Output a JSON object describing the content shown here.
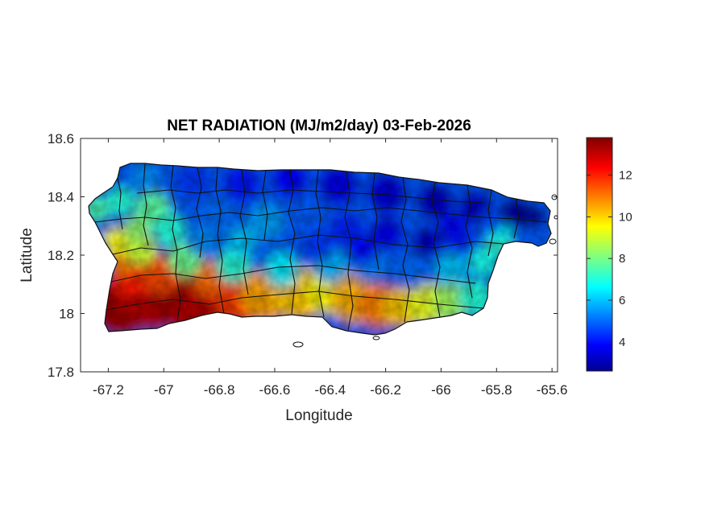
{
  "title": "NET RADIATION (MJ/m2/day) 03-Feb-2026",
  "x_axis": {
    "label": "Longitude",
    "range": [
      -67.3,
      -65.58
    ],
    "ticks": [
      {
        "value": -67.2,
        "label": "-67.2"
      },
      {
        "value": -67.0,
        "label": "-67"
      },
      {
        "value": -66.8,
        "label": "-66.8"
      },
      {
        "value": -66.6,
        "label": "-66.6"
      },
      {
        "value": -66.4,
        "label": "-66.4"
      },
      {
        "value": -66.2,
        "label": "-66.2"
      },
      {
        "value": -66.0,
        "label": "-66"
      },
      {
        "value": -65.8,
        "label": "-65.8"
      },
      {
        "value": -65.6,
        "label": "-65.6"
      }
    ]
  },
  "y_axis": {
    "label": "Latitude",
    "range": [
      17.8,
      18.6
    ],
    "ticks": [
      {
        "value": 18.6,
        "label": "18.6"
      },
      {
        "value": 18.4,
        "label": "18.4"
      },
      {
        "value": 18.2,
        "label": "18.2"
      },
      {
        "value": 18.0,
        "label": "18"
      },
      {
        "value": 17.8,
        "label": "17.8"
      }
    ]
  },
  "colorbar": {
    "colormap": "jet",
    "range": [
      2.6,
      13.8
    ],
    "ticks": [
      {
        "value": 4,
        "label": "4"
      },
      {
        "value": 6,
        "label": "6"
      },
      {
        "value": 8,
        "label": "8"
      },
      {
        "value": 10,
        "label": "10"
      },
      {
        "value": 12,
        "label": "12"
      }
    ]
  },
  "chart_data": {
    "type": "heatmap",
    "title": "NET RADIATION (MJ/m2/day) 03-Feb-2026",
    "xlabel": "Longitude",
    "ylabel": "Latitude",
    "xlim": [
      -67.3,
      -65.58
    ],
    "ylim": [
      17.8,
      18.6
    ],
    "color_range": [
      2.6,
      13.8
    ],
    "colormap": "jet",
    "grid": false,
    "region_pattern": [
      {
        "region": "southwest coast",
        "approx_value": 13
      },
      {
        "region": "south-central coast",
        "approx_value": 10.5
      },
      {
        "region": "southeast coast",
        "approx_value": 9.5
      },
      {
        "region": "western interior",
        "approx_value": 7
      },
      {
        "region": "north-central",
        "approx_value": 4.5
      },
      {
        "region": "northeast",
        "approx_value": 3.2
      },
      {
        "region": "east coast",
        "approx_value": 7
      }
    ]
  }
}
